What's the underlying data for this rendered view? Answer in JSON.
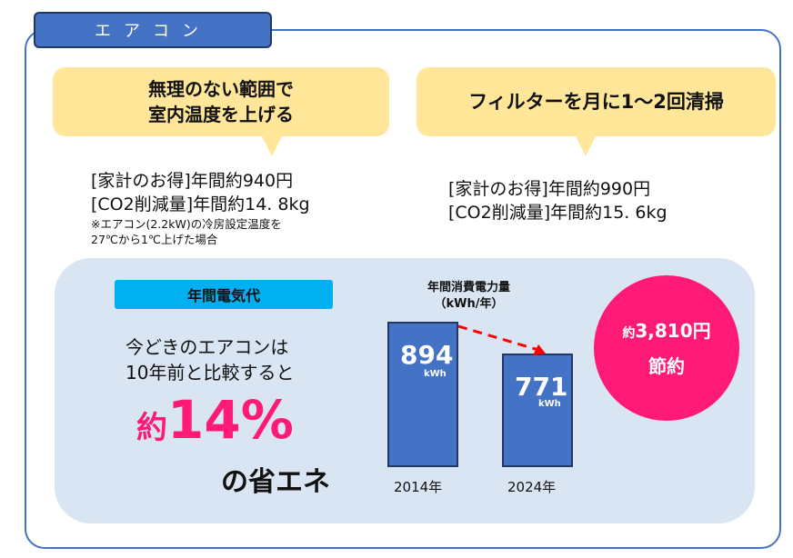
{
  "title": "エアコン",
  "tip1": {
    "line1": "無理のない範囲で",
    "line2": "室内温度を上げる",
    "savings": "[家計のお得]年間約940円",
    "co2": "[CO2削減量]年間約14. 8kg",
    "note1": "※エアコン(2.2kW)の冷房設定温度を",
    "note2": "27℃から1℃上げた場合"
  },
  "tip2": {
    "headline": "フィルターを月に1～2回清掃",
    "savings": "[家計のお得]年間約990円",
    "co2": "[CO2削減量]年間約15. 6kg"
  },
  "panel": {
    "label": "年間電気代",
    "line1": "今どきのエアコンは",
    "line2": "10年前と比較すると",
    "approx": "約",
    "percent": "14%",
    "line3": "の省エネ"
  },
  "chart": {
    "title1": "年間消費電力量",
    "title2": "（kWh/年）",
    "bars": [
      {
        "year": "2014年",
        "value": "894",
        "unit": "kWh"
      },
      {
        "year": "2024年",
        "value": "771",
        "unit": "kWh"
      }
    ]
  },
  "badge": {
    "approx": "約",
    "amount": "3,810円",
    "line2": "節約"
  },
  "colors": {
    "accent": "#4472c4",
    "bubble": "#ffe699",
    "pink": "#ff1a75",
    "cyan": "#00b0f0",
    "panel": "#dae5f3"
  }
}
